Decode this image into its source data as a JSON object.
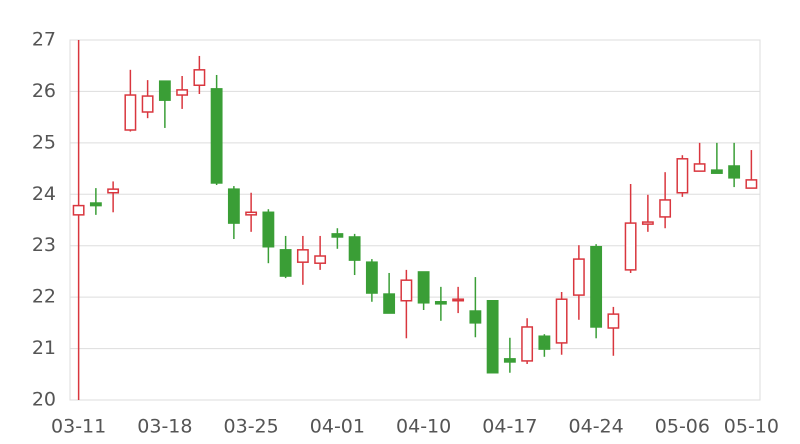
{
  "chart_data": {
    "type": "candlestick",
    "categories": [
      "03-11",
      null,
      null,
      null,
      null,
      "03-18",
      null,
      null,
      null,
      null,
      "03-25",
      null,
      null,
      null,
      null,
      "04-01",
      null,
      null,
      null,
      null,
      "04-10",
      null,
      null,
      null,
      null,
      "04-17",
      null,
      null,
      null,
      null,
      "04-24",
      null,
      null,
      null,
      null,
      "05-06",
      null,
      null,
      null,
      "05-10"
    ],
    "open": [
      23.6,
      23.83,
      24.03,
      25.25,
      25.6,
      26.2,
      25.93,
      26.12,
      26.05,
      24.1,
      23.6,
      23.65,
      22.92,
      22.68,
      22.66,
      23.23,
      23.17,
      22.68,
      22.06,
      21.93,
      22.49,
      21.91,
      21.93,
      21.73,
      21.93,
      20.8,
      20.76,
      21.24,
      21.11,
      22.04,
      22.98,
      21.4,
      22.53,
      23.42,
      23.56,
      24.03,
      24.45,
      24.47,
      24.55,
      24.12
    ],
    "high": [
      27,
      24.12,
      24.25,
      26.42,
      26.22,
      26.2,
      26.3,
      26.69,
      26.32,
      24.16,
      24.03,
      23.71,
      23.19,
      23.19,
      23.19,
      23.34,
      23.23,
      22.74,
      22.47,
      22.53,
      22.49,
      22.2,
      22.2,
      22.39,
      21.93,
      21.21,
      21.59,
      21.28,
      22.1,
      23.01,
      23.03,
      21.81,
      24.2,
      23.99,
      24.43,
      24.76,
      25.0,
      25.0,
      25.0,
      24.86
    ],
    "low": [
      20,
      23.6,
      23.65,
      25.22,
      25.48,
      25.29,
      25.66,
      25.95,
      24.18,
      23.13,
      23.27,
      22.66,
      22.37,
      22.24,
      22.53,
      22.94,
      22.43,
      21.91,
      21.69,
      21.2,
      21.75,
      21.54,
      21.69,
      21.22,
      20.53,
      20.53,
      20.7,
      20.84,
      20.88,
      21.56,
      21.2,
      20.86,
      22.47,
      23.27,
      23.34,
      23.95,
      24.45,
      24.41,
      24.14,
      24.12
    ],
    "close": [
      23.78,
      23.78,
      24.1,
      25.93,
      25.91,
      25.83,
      26.03,
      26.42,
      24.22,
      23.44,
      23.65,
      22.98,
      22.41,
      22.92,
      22.8,
      23.17,
      22.72,
      22.08,
      21.69,
      22.33,
      21.89,
      21.87,
      21.96,
      21.5,
      20.53,
      20.74,
      21.42,
      20.99,
      21.96,
      22.74,
      21.42,
      21.67,
      23.44,
      23.46,
      23.89,
      24.69,
      24.59,
      24.41,
      24.32,
      24.28
    ],
    "up_color": "#d9363e",
    "down_color": "#3a9e36",
    "ylim": [
      20,
      27
    ],
    "yticks": [
      20,
      21,
      22,
      23,
      24,
      25,
      26,
      27
    ],
    "grid": true
  }
}
